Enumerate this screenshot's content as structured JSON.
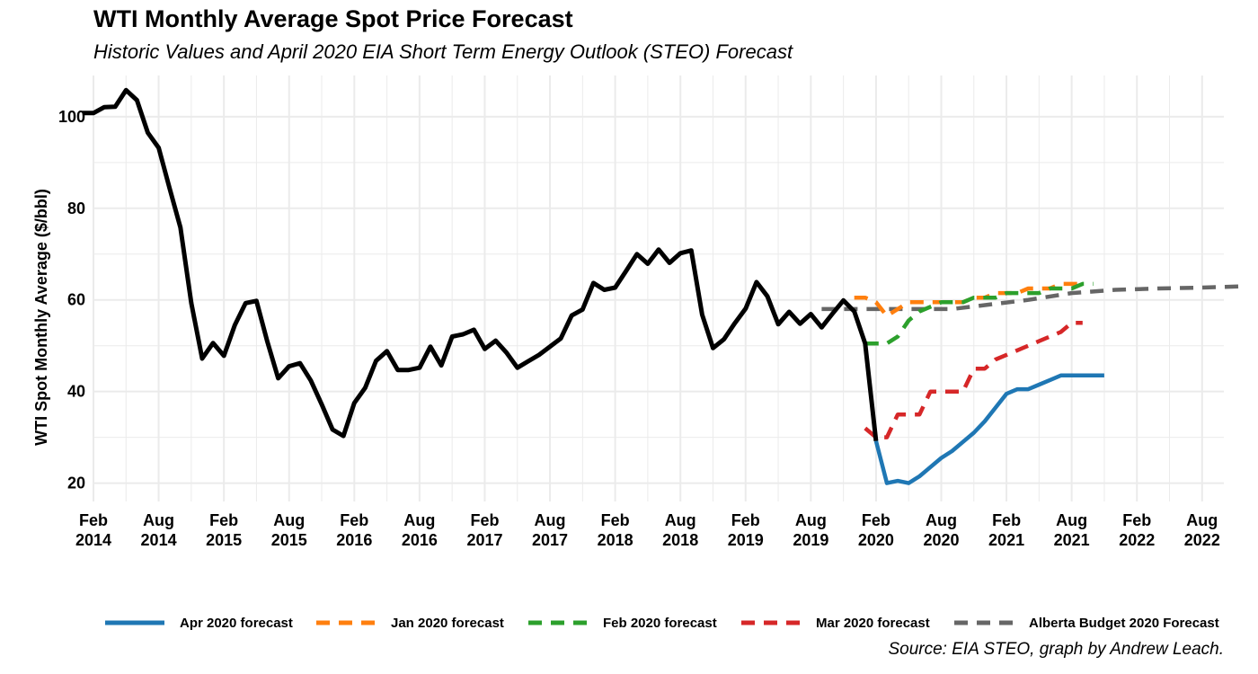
{
  "chart_data": {
    "type": "line",
    "title": "WTI Monthly Average Spot Price Forecast",
    "subtitle": "Historic Values and April 2020 EIA Short Term Energy Outlook (STEO) Forecast",
    "ylabel": "WTI Spot Monthly Average ($/bbl)",
    "xlabel": "",
    "caption": "Source: EIA STEO, graph by Andrew Leach.",
    "ylim": [
      16,
      109
    ],
    "xlim": [
      "2014-02",
      "2022-10"
    ],
    "grid": true,
    "legend_position": "bottom",
    "y_ticks": [
      20,
      40,
      60,
      80,
      100
    ],
    "x_ticks": [
      {
        "date": "2014-02",
        "line1": "Feb",
        "line2": "2014"
      },
      {
        "date": "2014-08",
        "line1": "Aug",
        "line2": "2014"
      },
      {
        "date": "2015-02",
        "line1": "Feb",
        "line2": "2015"
      },
      {
        "date": "2015-08",
        "line1": "Aug",
        "line2": "2015"
      },
      {
        "date": "2016-02",
        "line1": "Feb",
        "line2": "2016"
      },
      {
        "date": "2016-08",
        "line1": "Aug",
        "line2": "2016"
      },
      {
        "date": "2017-02",
        "line1": "Feb",
        "line2": "2017"
      },
      {
        "date": "2017-08",
        "line1": "Aug",
        "line2": "2017"
      },
      {
        "date": "2018-02",
        "line1": "Feb",
        "line2": "2018"
      },
      {
        "date": "2018-08",
        "line1": "Aug",
        "line2": "2018"
      },
      {
        "date": "2019-02",
        "line1": "Feb",
        "line2": "2019"
      },
      {
        "date": "2019-08",
        "line1": "Aug",
        "line2": "2019"
      },
      {
        "date": "2020-02",
        "line1": "Feb",
        "line2": "2020"
      },
      {
        "date": "2020-08",
        "line1": "Aug",
        "line2": "2020"
      },
      {
        "date": "2021-02",
        "line1": "Feb",
        "line2": "2021"
      },
      {
        "date": "2021-08",
        "line1": "Aug",
        "line2": "2021"
      },
      {
        "date": "2022-02",
        "line1": "Feb",
        "line2": "2022"
      },
      {
        "date": "2022-08",
        "line1": "Aug",
        "line2": "2022"
      }
    ],
    "history": {
      "color": "#000000",
      "points": [
        [
          "2014-01",
          100.8
        ],
        [
          "2014-02",
          100.8
        ],
        [
          "2014-03",
          102.1
        ],
        [
          "2014-04",
          102.2
        ],
        [
          "2014-05",
          105.8
        ],
        [
          "2014-06",
          103.6
        ],
        [
          "2014-07",
          96.5
        ],
        [
          "2014-08",
          93.2
        ],
        [
          "2014-09",
          84.4
        ],
        [
          "2014-10",
          75.8
        ],
        [
          "2014-11",
          59.3
        ],
        [
          "2014-12",
          47.2
        ],
        [
          "2015-01",
          50.6
        ],
        [
          "2015-02",
          47.8
        ],
        [
          "2015-03",
          54.5
        ],
        [
          "2015-04",
          59.3
        ],
        [
          "2015-05",
          59.8
        ],
        [
          "2015-06",
          50.9
        ],
        [
          "2015-07",
          42.9
        ],
        [
          "2015-08",
          45.5
        ],
        [
          "2015-09",
          46.2
        ],
        [
          "2015-10",
          42.4
        ],
        [
          "2015-11",
          37.2
        ],
        [
          "2015-12",
          31.7
        ],
        [
          "2016-01",
          30.3
        ],
        [
          "2016-02",
          37.5
        ],
        [
          "2016-03",
          40.8
        ],
        [
          "2016-04",
          46.7
        ],
        [
          "2016-05",
          48.8
        ],
        [
          "2016-06",
          44.7
        ],
        [
          "2016-07",
          44.7
        ],
        [
          "2016-08",
          45.2
        ],
        [
          "2016-09",
          49.8
        ],
        [
          "2016-10",
          45.7
        ],
        [
          "2016-11",
          52.0
        ],
        [
          "2016-12",
          52.5
        ],
        [
          "2017-01",
          53.5
        ],
        [
          "2017-02",
          49.3
        ],
        [
          "2017-03",
          51.1
        ],
        [
          "2017-04",
          48.5
        ],
        [
          "2017-05",
          45.2
        ],
        [
          "2017-06",
          46.6
        ],
        [
          "2017-07",
          48.0
        ],
        [
          "2017-08",
          49.8
        ],
        [
          "2017-09",
          51.6
        ],
        [
          "2017-10",
          56.6
        ],
        [
          "2017-11",
          57.9
        ],
        [
          "2017-12",
          63.7
        ],
        [
          "2018-01",
          62.2
        ],
        [
          "2018-02",
          62.7
        ],
        [
          "2018-03",
          66.3
        ],
        [
          "2018-04",
          70.0
        ],
        [
          "2018-05",
          67.9
        ],
        [
          "2018-06",
          71.0
        ],
        [
          "2018-07",
          68.1
        ],
        [
          "2018-08",
          70.2
        ],
        [
          "2018-09",
          70.8
        ],
        [
          "2018-10",
          56.8
        ],
        [
          "2018-11",
          49.5
        ],
        [
          "2018-12",
          51.4
        ],
        [
          "2019-01",
          54.9
        ],
        [
          "2019-02",
          58.1
        ],
        [
          "2019-03",
          63.9
        ],
        [
          "2019-04",
          60.8
        ],
        [
          "2019-05",
          54.7
        ],
        [
          "2019-06",
          57.4
        ],
        [
          "2019-07",
          54.8
        ],
        [
          "2019-08",
          56.9
        ],
        [
          "2019-09",
          54.0
        ],
        [
          "2019-10",
          57.0
        ],
        [
          "2019-11",
          59.9
        ],
        [
          "2019-12",
          57.5
        ],
        [
          "2020-01",
          50.5
        ],
        [
          "2020-02",
          29.2
        ]
      ]
    },
    "series": [
      {
        "name": "Apr 2020 forecast",
        "color": "#1f77b4",
        "dash": false,
        "points": [
          [
            "2020-02",
            29.2
          ],
          [
            "2020-03",
            20.0
          ],
          [
            "2020-04",
            20.5
          ],
          [
            "2020-05",
            20.0
          ],
          [
            "2020-06",
            21.5
          ],
          [
            "2020-07",
            23.5
          ],
          [
            "2020-08",
            25.5
          ],
          [
            "2020-09",
            27.0
          ],
          [
            "2020-10",
            29.0
          ],
          [
            "2020-11",
            31.0
          ],
          [
            "2020-12",
            33.5
          ],
          [
            "2021-01",
            36.5
          ],
          [
            "2021-02",
            39.5
          ],
          [
            "2021-03",
            40.5
          ],
          [
            "2021-04",
            40.5
          ],
          [
            "2021-05",
            41.5
          ],
          [
            "2021-06",
            42.5
          ],
          [
            "2021-07",
            43.5
          ],
          [
            "2021-08",
            43.5
          ],
          [
            "2021-09",
            43.5
          ],
          [
            "2021-10",
            43.5
          ],
          [
            "2021-11",
            43.5
          ]
        ]
      },
      {
        "name": "Jan 2020 forecast",
        "color": "#ff7f0e",
        "dash": true,
        "points": [
          [
            "2019-12",
            60.5
          ],
          [
            "2020-01",
            60.5
          ],
          [
            "2020-02",
            59.5
          ],
          [
            "2020-03",
            56.5
          ],
          [
            "2020-04",
            58.0
          ],
          [
            "2020-05",
            59.5
          ],
          [
            "2020-06",
            59.5
          ],
          [
            "2020-07",
            59.5
          ],
          [
            "2020-08",
            59.5
          ],
          [
            "2020-09",
            59.5
          ],
          [
            "2020-10",
            59.5
          ],
          [
            "2020-11",
            60.5
          ],
          [
            "2020-12",
            60.5
          ],
          [
            "2021-01",
            61.5
          ],
          [
            "2021-02",
            61.5
          ],
          [
            "2021-03",
            61.5
          ],
          [
            "2021-04",
            62.5
          ],
          [
            "2021-05",
            62.5
          ],
          [
            "2021-06",
            62.5
          ],
          [
            "2021-07",
            63.5
          ],
          [
            "2021-08",
            63.5
          ],
          [
            "2021-09",
            63.5
          ]
        ]
      },
      {
        "name": "Feb 2020 forecast",
        "color": "#2ca02c",
        "dash": true,
        "points": [
          [
            "2020-01",
            50.5
          ],
          [
            "2020-02",
            50.5
          ],
          [
            "2020-03",
            50.5
          ],
          [
            "2020-04",
            52.0
          ],
          [
            "2020-05",
            55.5
          ],
          [
            "2020-06",
            57.5
          ],
          [
            "2020-07",
            58.5
          ],
          [
            "2020-08",
            59.5
          ],
          [
            "2020-09",
            59.5
          ],
          [
            "2020-10",
            59.5
          ],
          [
            "2020-11",
            60.5
          ],
          [
            "2020-12",
            60.5
          ],
          [
            "2021-01",
            60.5
          ],
          [
            "2021-02",
            61.5
          ],
          [
            "2021-03",
            61.5
          ],
          [
            "2021-04",
            61.5
          ],
          [
            "2021-05",
            61.5
          ],
          [
            "2021-06",
            62.5
          ],
          [
            "2021-07",
            62.5
          ],
          [
            "2021-08",
            62.5
          ],
          [
            "2021-09",
            63.5
          ],
          [
            "2021-10",
            63.5
          ]
        ]
      },
      {
        "name": "Mar 2020 forecast",
        "color": "#d62728",
        "dash": true,
        "points": [
          [
            "2020-01",
            32.0
          ],
          [
            "2020-02",
            30.0
          ],
          [
            "2020-03",
            30.0
          ],
          [
            "2020-04",
            35.0
          ],
          [
            "2020-05",
            35.0
          ],
          [
            "2020-06",
            35.0
          ],
          [
            "2020-07",
            40.0
          ],
          [
            "2020-08",
            40.0
          ],
          [
            "2020-09",
            40.0
          ],
          [
            "2020-10",
            40.0
          ],
          [
            "2020-11",
            45.0
          ],
          [
            "2020-12",
            45.0
          ],
          [
            "2021-01",
            47.0
          ],
          [
            "2021-02",
            48.0
          ],
          [
            "2021-03",
            49.0
          ],
          [
            "2021-04",
            50.0
          ],
          [
            "2021-05",
            51.0
          ],
          [
            "2021-06",
            52.0
          ],
          [
            "2021-07",
            53.0
          ],
          [
            "2021-08",
            55.0
          ],
          [
            "2021-09",
            55.0
          ]
        ]
      },
      {
        "name": "Alberta Budget 2020 Forecast",
        "color": "#666666",
        "dash": true,
        "points": [
          [
            "2019-09",
            58.0
          ],
          [
            "2020-04",
            58.0
          ],
          [
            "2020-09",
            58.0
          ],
          [
            "2021-04",
            60.0
          ],
          [
            "2021-08",
            61.5
          ],
          [
            "2021-12",
            62.2
          ],
          [
            "2022-04",
            62.5
          ],
          [
            "2022-08",
            62.7
          ],
          [
            "2022-12",
            63.0
          ]
        ]
      }
    ]
  }
}
